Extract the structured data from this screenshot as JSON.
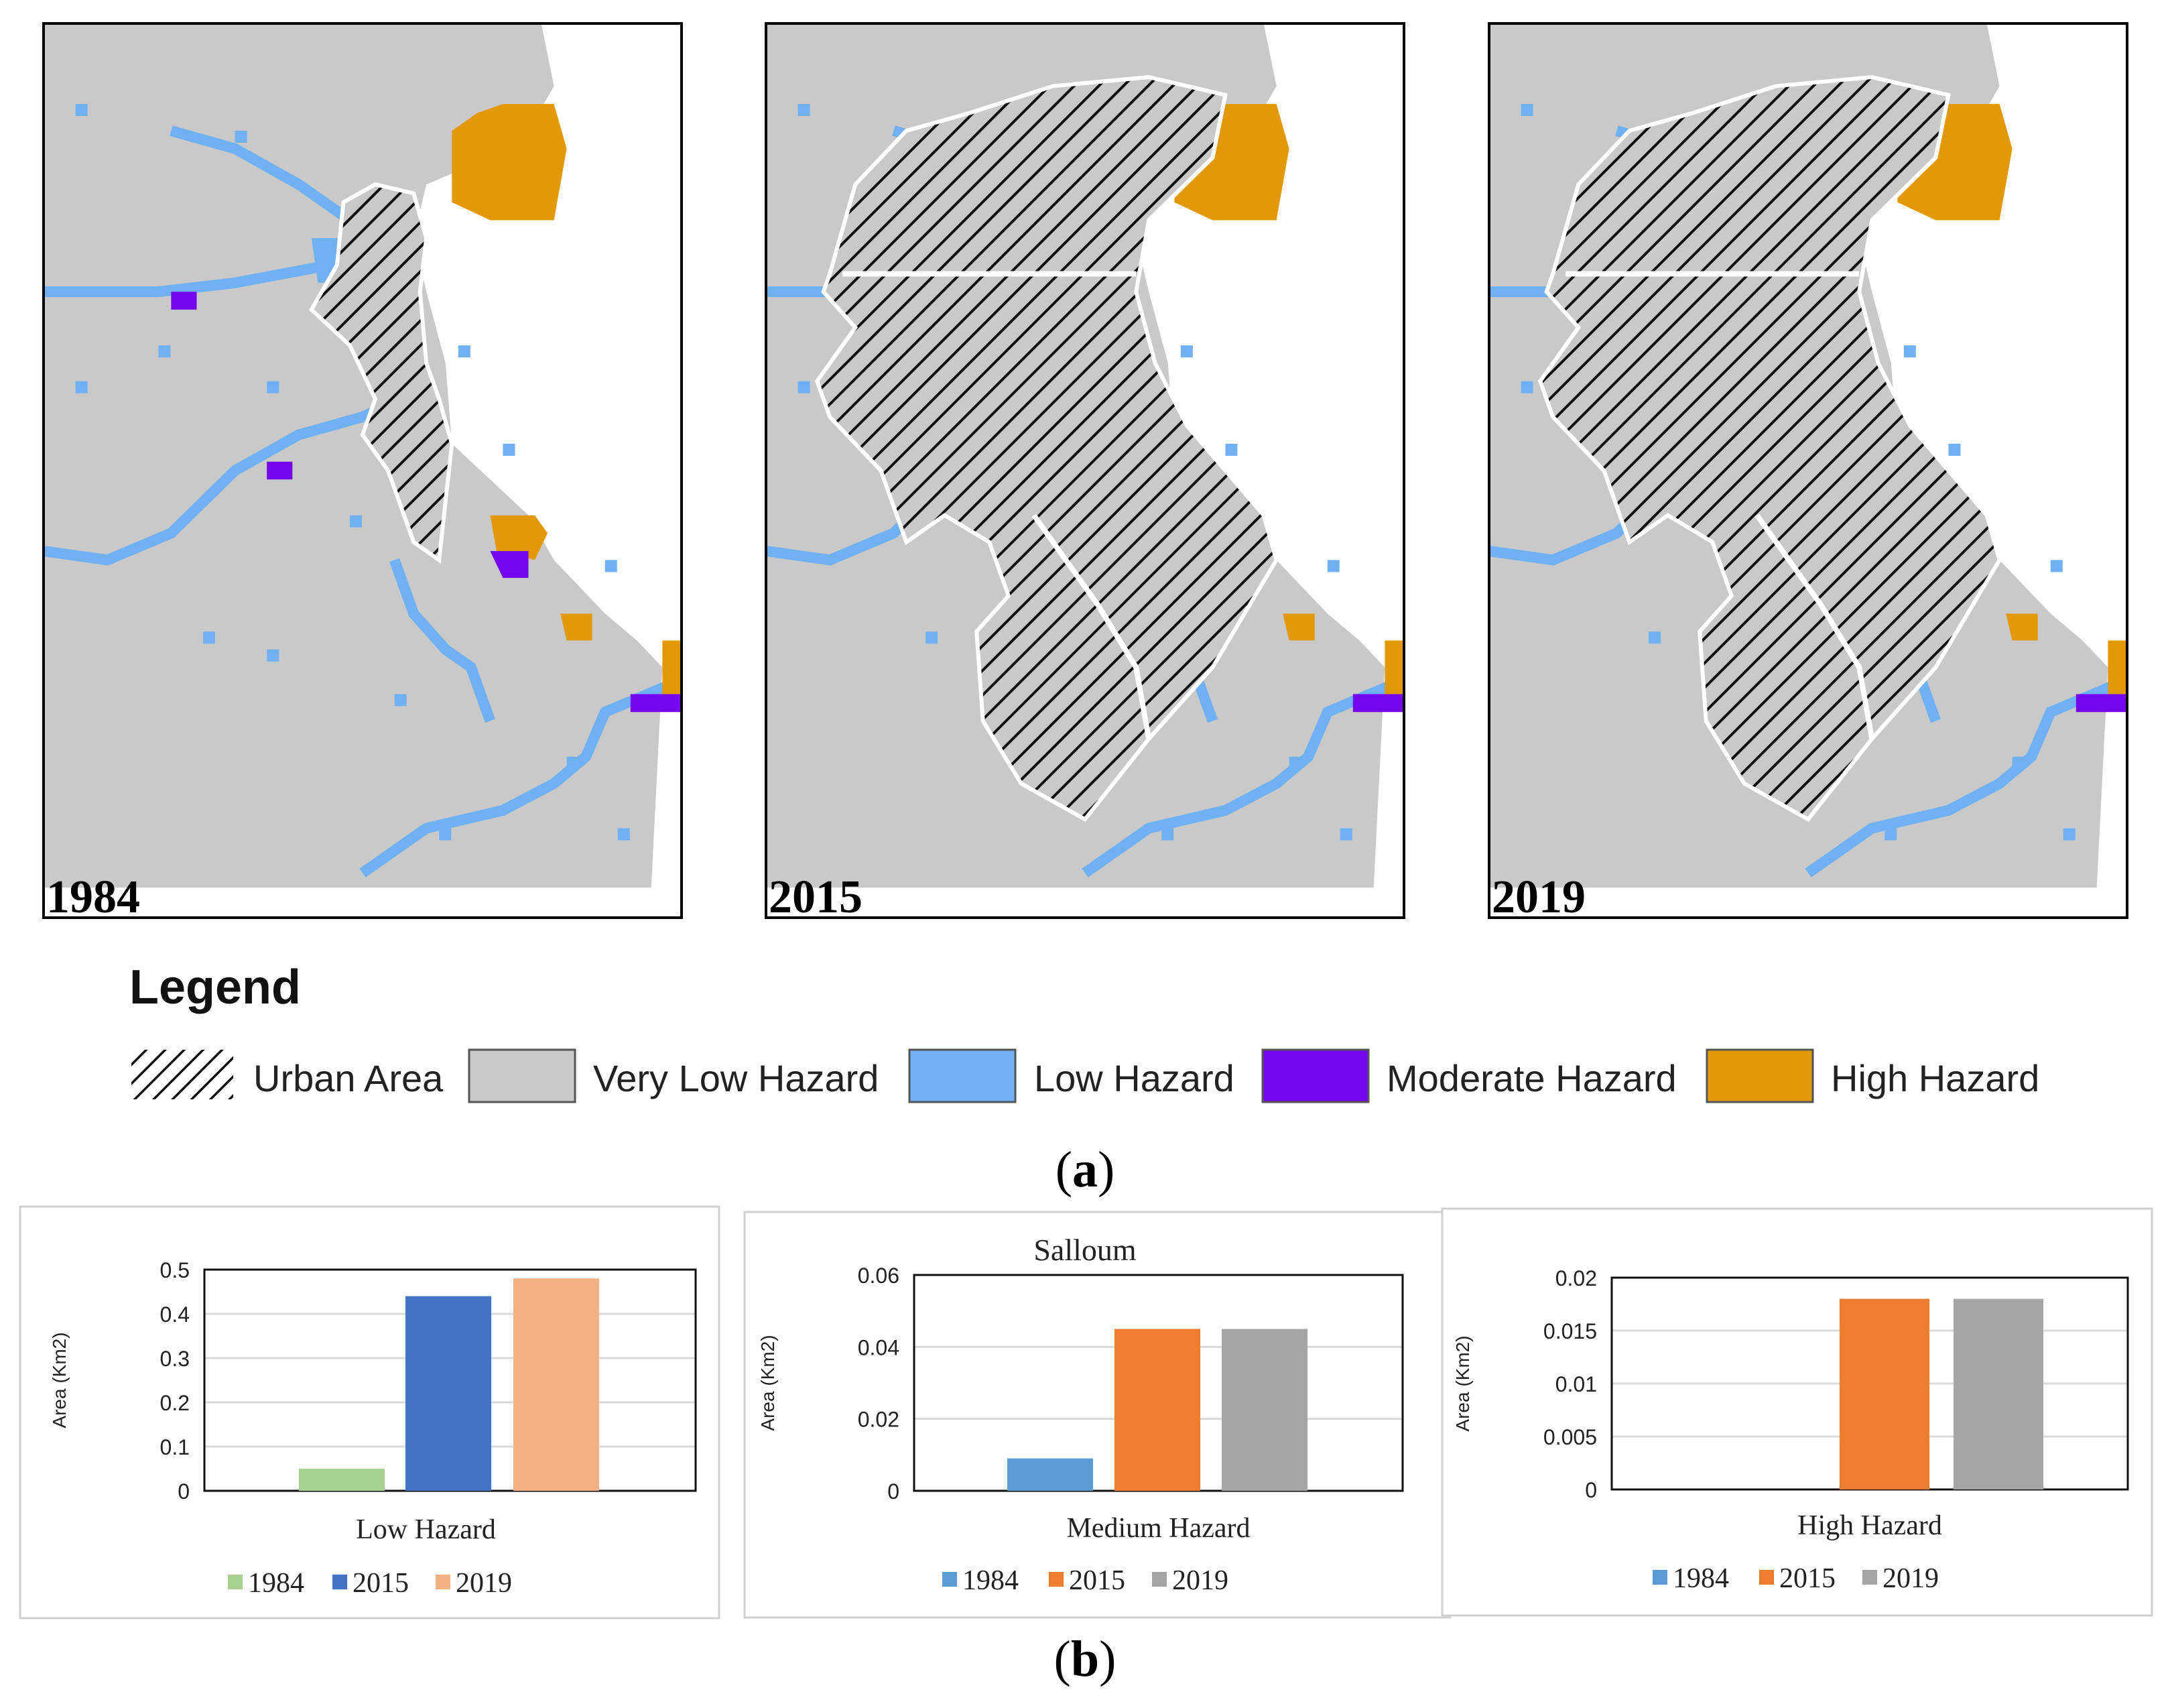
{
  "colors": {
    "very_low": "#c9c9c9",
    "low": "#6fb1f2",
    "moderate": "#7407f0",
    "high": "#e39907",
    "urban_outline": "#ffffff",
    "blue_1984": "#5b9bd5",
    "orange_2015": "#ed7d31",
    "gray_2019": "#a5a5a5",
    "green_1984": "#a9d18e",
    "blue_2015": "#4472c4",
    "salmon_2019": "#f4b183"
  },
  "part_a": {
    "label": "a",
    "maps": [
      {
        "year": "1984"
      },
      {
        "year": "2015"
      },
      {
        "year": "2019"
      }
    ],
    "legend": {
      "title": "Legend",
      "items": [
        {
          "label": "Urban Area",
          "swatch": "hatch"
        },
        {
          "label": "Very Low Hazard",
          "swatch": "#c9c9c9"
        },
        {
          "label": "Low Hazard",
          "swatch": "#6fb1f2"
        },
        {
          "label": "Moderate Hazard",
          "swatch": "#7407f0"
        },
        {
          "label": "High Hazard",
          "swatch": "#e39907"
        }
      ]
    }
  },
  "part_b": {
    "label": "b"
  },
  "chart_data": [
    {
      "type": "bar",
      "title": "",
      "xlabel": "Low Hazard",
      "ylabel": "Area (Km2)",
      "categories": [
        "1984",
        "2015",
        "2019"
      ],
      "values": [
        0.05,
        0.44,
        0.48
      ],
      "colors": [
        "#a9d18e",
        "#4472c4",
        "#f4b183"
      ],
      "ylim": [
        0,
        0.5
      ],
      "yticks": [
        "0",
        "0.1",
        "0.2",
        "0.3",
        "0.4",
        "0.5"
      ],
      "legend": [
        "1984",
        "2015",
        "2019"
      ]
    },
    {
      "type": "bar",
      "title": "Salloum",
      "xlabel": "Medium Hazard",
      "ylabel": "Area (Km2)",
      "categories": [
        "1984",
        "2015",
        "2019"
      ],
      "values": [
        0.009,
        0.045,
        0.045
      ],
      "colors": [
        "#5b9bd5",
        "#ed7d31",
        "#a5a5a5"
      ],
      "ylim": [
        0,
        0.06
      ],
      "yticks": [
        "0",
        "0.02",
        "0.04",
        "0.06"
      ],
      "legend": [
        "1984",
        "2015",
        "2019"
      ]
    },
    {
      "type": "bar",
      "title": "",
      "xlabel": "High Hazard",
      "ylabel": "Area (Km2)",
      "categories": [
        "1984",
        "2015",
        "2019"
      ],
      "values": [
        0,
        0.018,
        0.018
      ],
      "colors": [
        "#5b9bd5",
        "#ed7d31",
        "#a5a5a5"
      ],
      "ylim": [
        0,
        0.02
      ],
      "yticks": [
        "0",
        "0.005",
        "0.01",
        "0.015",
        "0.02"
      ],
      "legend": [
        "1984",
        "2015",
        "2019"
      ]
    }
  ]
}
